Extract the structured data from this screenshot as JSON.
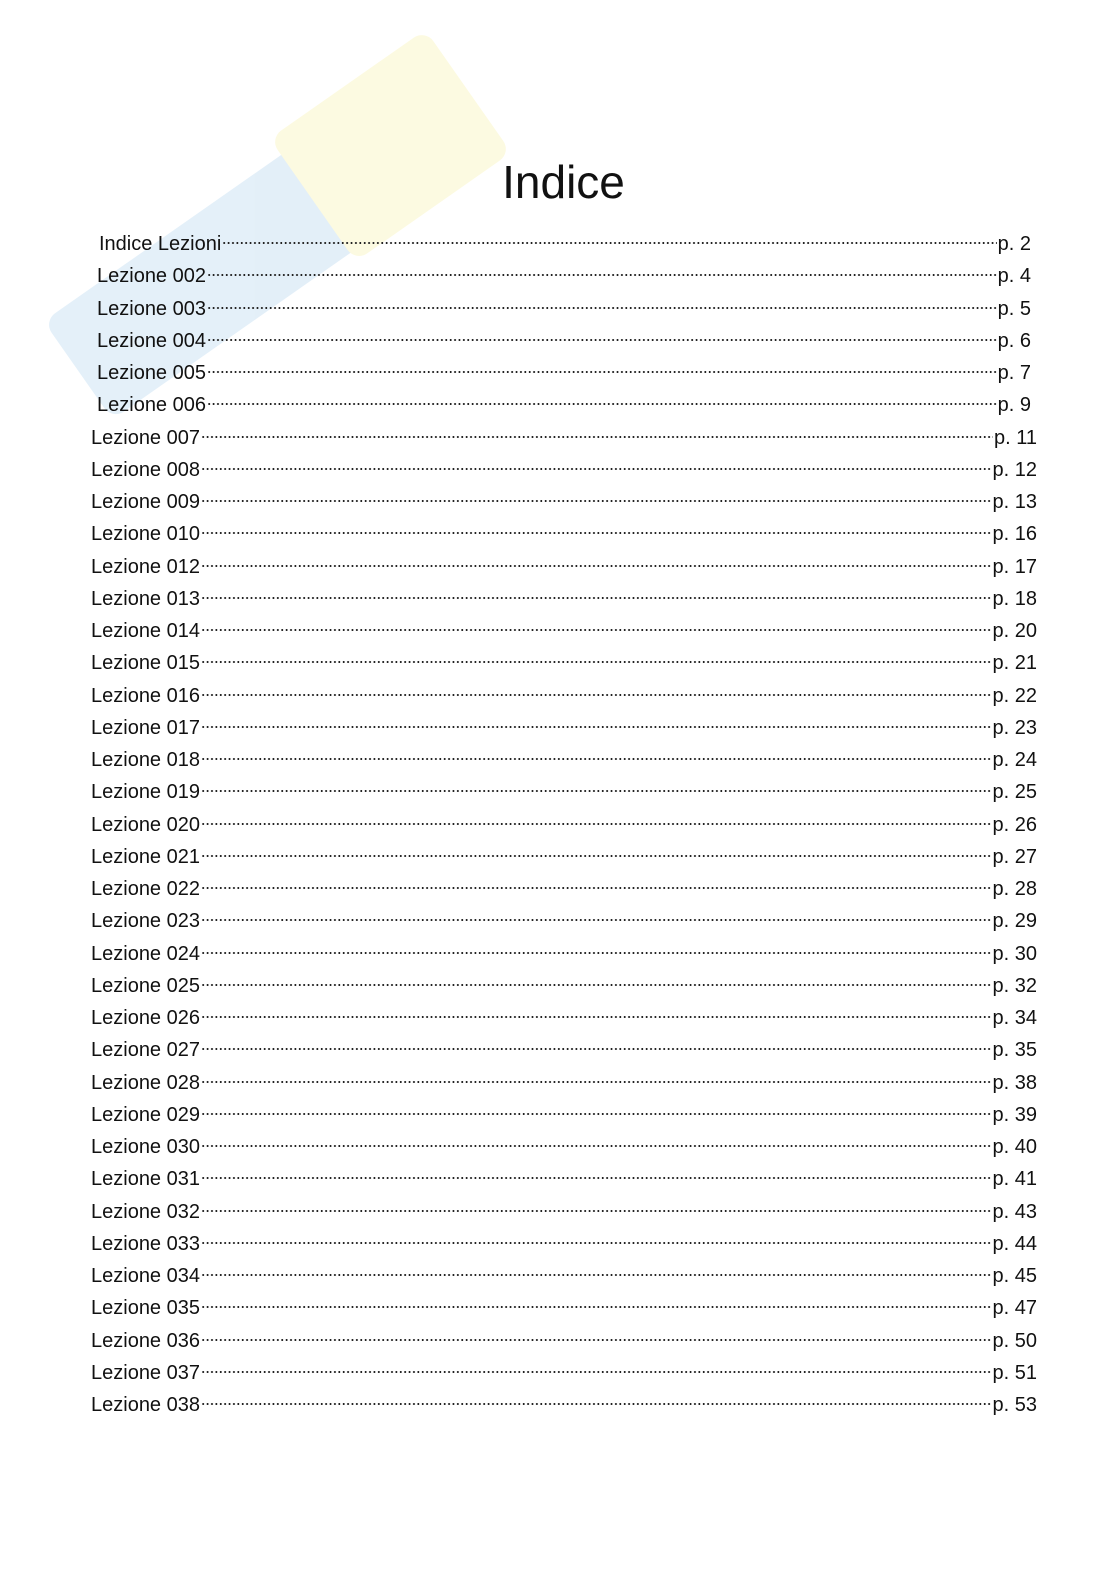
{
  "title": "Indice",
  "entries": [
    {
      "label": "Indice Lezioni",
      "page": "p. 2"
    },
    {
      "label": "Lezione 002",
      "page": "p. 4"
    },
    {
      "label": "Lezione 003",
      "page": "p. 5"
    },
    {
      "label": "Lezione 004",
      "page": "p. 6"
    },
    {
      "label": "Lezione 005",
      "page": "p. 7"
    },
    {
      "label": "Lezione 006",
      "page": "p. 9"
    },
    {
      "label": "Lezione 007",
      "page": "p. 11"
    },
    {
      "label": "Lezione 008",
      "page": "p. 12"
    },
    {
      "label": "Lezione 009",
      "page": "p. 13"
    },
    {
      "label": "Lezione 010",
      "page": "p. 16"
    },
    {
      "label": "Lezione 012",
      "page": "p. 17"
    },
    {
      "label": "Lezione 013",
      "page": "p. 18"
    },
    {
      "label": "Lezione 014",
      "page": "p. 20"
    },
    {
      "label": "Lezione 015",
      "page": "p. 21"
    },
    {
      "label": "Lezione 016",
      "page": "p. 22"
    },
    {
      "label": "Lezione 017",
      "page": "p. 23"
    },
    {
      "label": "Lezione 018",
      "page": "p. 24"
    },
    {
      "label": "Lezione 019",
      "page": "p. 25"
    },
    {
      "label": "Lezione 020",
      "page": "p. 26"
    },
    {
      "label": "Lezione 021",
      "page": "p. 27"
    },
    {
      "label": "Lezione 022",
      "page": "p. 28"
    },
    {
      "label": "Lezione 023",
      "page": "p. 29"
    },
    {
      "label": "Lezione 024",
      "page": "p. 30"
    },
    {
      "label": "Lezione 025",
      "page": "p. 32"
    },
    {
      "label": "Lezione 026",
      "page": "p. 34"
    },
    {
      "label": "Lezione 027",
      "page": "p. 35"
    },
    {
      "label": "Lezione 028",
      "page": "p. 38"
    },
    {
      "label": "Lezione 029",
      "page": "p. 39"
    },
    {
      "label": "Lezione 030",
      "page": "p. 40"
    },
    {
      "label": "Lezione 031",
      "page": "p. 41"
    },
    {
      "label": "Lezione 032",
      "page": "p. 43"
    },
    {
      "label": "Lezione 033",
      "page": "p. 44"
    },
    {
      "label": "Lezione 034",
      "page": "p. 45"
    },
    {
      "label": "Lezione 035",
      "page": "p. 47"
    },
    {
      "label": "Lezione 036",
      "page": "p. 50"
    },
    {
      "label": "Lezione 037",
      "page": "p. 51"
    },
    {
      "label": "Lezione 038",
      "page": "p. 53"
    }
  ]
}
